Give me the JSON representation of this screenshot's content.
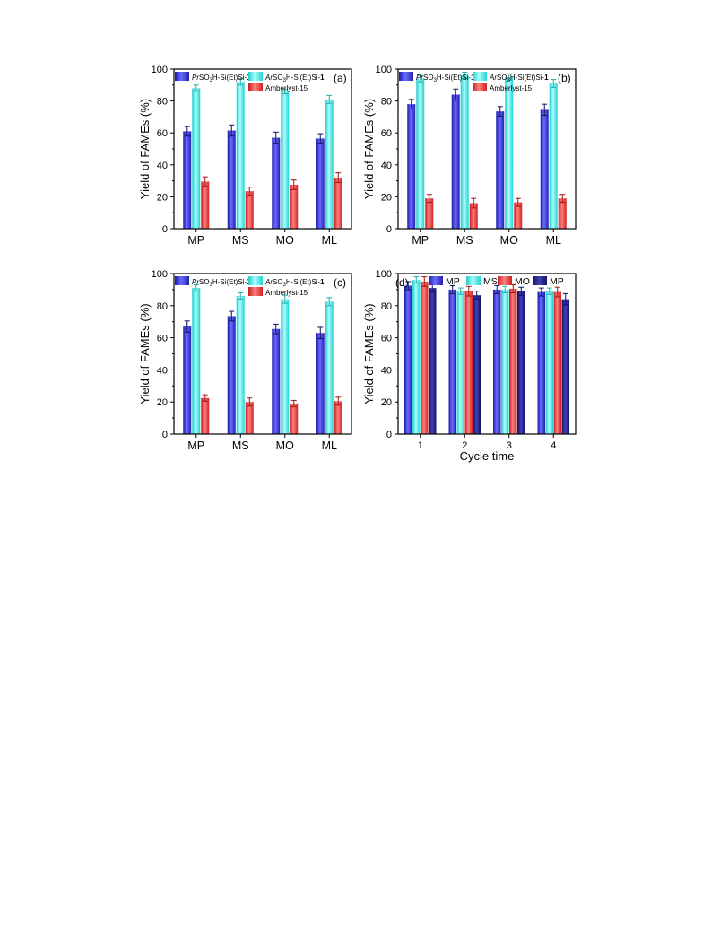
{
  "colors": {
    "blue": "#3c3ce8",
    "cyan": "#4ff0ef",
    "red": "#ef3c3c",
    "navy": "#22228a",
    "axis": "#000000"
  },
  "chart_data": [
    {
      "type": "bar",
      "panel_label": "(a)",
      "ylabel": "Yield of FAMEs (%)",
      "xlabel": "",
      "ylim": [
        0,
        100
      ],
      "yticks": [
        0,
        20,
        40,
        60,
        80,
        100
      ],
      "categories": [
        "MP",
        "MS",
        "MO",
        "ML"
      ],
      "legend_position": "top",
      "series": [
        {
          "name": "PrSO3H-Si(Et)Si-1",
          "name_parts": [
            "Pr",
            "SO",
            "3",
            "H-Si(Et)Si-",
            "1"
          ],
          "color_key": "blue",
          "values": [
            61,
            61.5,
            57,
            56.5
          ],
          "errors": [
            3,
            3.5,
            3.5,
            3
          ]
        },
        {
          "name": "ArSO3H-Si(Et)Si-1",
          "name_parts": [
            "Ar",
            "SO",
            "3",
            "H-Si(Et)Si-",
            "1"
          ],
          "color_key": "cyan",
          "values": [
            88,
            92,
            86,
            81
          ],
          "errors": [
            2,
            2,
            1.5,
            2.5
          ]
        },
        {
          "name": "Amberlyst-15",
          "name_parts": [
            "",
            "",
            "",
            "Amberlyst-15",
            ""
          ],
          "color_key": "red",
          "values": [
            29.5,
            23.5,
            27.5,
            32
          ],
          "errors": [
            3,
            2.5,
            3,
            3
          ]
        }
      ]
    },
    {
      "type": "bar",
      "panel_label": "(b)",
      "ylabel": "Yield of FAMEs (%)",
      "xlabel": "",
      "ylim": [
        0,
        100
      ],
      "yticks": [
        0,
        20,
        40,
        60,
        80,
        100
      ],
      "categories": [
        "MP",
        "MS",
        "MO",
        "ML"
      ],
      "legend_position": "top",
      "series": [
        {
          "name": "PrSO3H-Si(Et)Si-1",
          "name_parts": [
            "Pr",
            "SO",
            "3",
            "H-Si(Et)Si-",
            "1"
          ],
          "color_key": "blue",
          "values": [
            78,
            84,
            73.5,
            74.5
          ],
          "errors": [
            3,
            3.5,
            3,
            3.5
          ]
        },
        {
          "name": "ArSO3H-Si(Et)Si-1",
          "name_parts": [
            "Ar",
            "SO",
            "3",
            "H-Si(Et)Si-",
            "1"
          ],
          "color_key": "cyan",
          "values": [
            94,
            96,
            95,
            91
          ],
          "errors": [
            2,
            2,
            2,
            2.5
          ]
        },
        {
          "name": "Amberlyst-15",
          "name_parts": [
            "",
            "",
            "",
            "Amberlyst-15",
            ""
          ],
          "color_key": "red",
          "values": [
            19,
            16,
            16.5,
            19
          ],
          "errors": [
            2.5,
            3,
            2.5,
            2.5
          ]
        }
      ]
    },
    {
      "type": "bar",
      "panel_label": "(c)",
      "ylabel": "Yield of FAMEs (%)",
      "xlabel": "",
      "ylim": [
        0,
        100
      ],
      "yticks": [
        0,
        20,
        40,
        60,
        80,
        100
      ],
      "categories": [
        "MP",
        "MS",
        "MO",
        "ML"
      ],
      "legend_position": "top",
      "series": [
        {
          "name": "PrSO3H-Si(Et)Si-1",
          "name_parts": [
            "Pr",
            "SO",
            "3",
            "H-Si(Et)Si-",
            "1"
          ],
          "color_key": "blue",
          "values": [
            67,
            73.5,
            65.5,
            63
          ],
          "errors": [
            3.5,
            3,
            3,
            3.5
          ]
        },
        {
          "name": "ArSO3H-Si(Et)Si-1",
          "name_parts": [
            "Ar",
            "SO",
            "3",
            "H-Si(Et)Si-",
            "1"
          ],
          "color_key": "cyan",
          "values": [
            91,
            86,
            84,
            82.5
          ],
          "errors": [
            2,
            2,
            2.5,
            2.5
          ]
        },
        {
          "name": "Amberlyst-15",
          "name_parts": [
            "",
            "",
            "",
            "Amberlyst-15",
            ""
          ],
          "color_key": "red",
          "values": [
            22.5,
            20,
            19,
            20.5
          ],
          "errors": [
            2,
            2.5,
            2,
            2.5
          ]
        }
      ]
    },
    {
      "type": "bar",
      "panel_label": "(d)",
      "ylabel": "Yield of FAMEs (%)",
      "xlabel": "Cycle time",
      "ylim": [
        0,
        100
      ],
      "yticks": [
        0,
        20,
        40,
        60,
        80,
        100
      ],
      "categories": [
        "1",
        "2",
        "3",
        "4"
      ],
      "legend_position": "top",
      "series": [
        {
          "name": "MP",
          "name_parts": [
            "",
            "",
            "",
            "MP",
            ""
          ],
          "color_key": "blue",
          "values": [
            92.5,
            90,
            90,
            88.5
          ],
          "errors": [
            2.5,
            2.5,
            2.5,
            2.5
          ]
        },
        {
          "name": "MS",
          "name_parts": [
            "",
            "",
            "",
            "MS",
            ""
          ],
          "color_key": "cyan",
          "values": [
            96,
            89,
            90,
            89
          ],
          "errors": [
            2,
            2,
            2,
            2
          ]
        },
        {
          "name": "MO",
          "name_parts": [
            "",
            "",
            "",
            "MO",
            ""
          ],
          "color_key": "red",
          "values": [
            95,
            89,
            90.5,
            88.5
          ],
          "errors": [
            3,
            3,
            2.5,
            3
          ]
        },
        {
          "name": "MP",
          "name_parts": [
            "",
            "",
            "",
            "MP",
            ""
          ],
          "color_key": "navy",
          "values": [
            91,
            86.5,
            89,
            84
          ],
          "errors": [
            2.5,
            2.5,
            2.5,
            3.5
          ]
        }
      ]
    }
  ]
}
